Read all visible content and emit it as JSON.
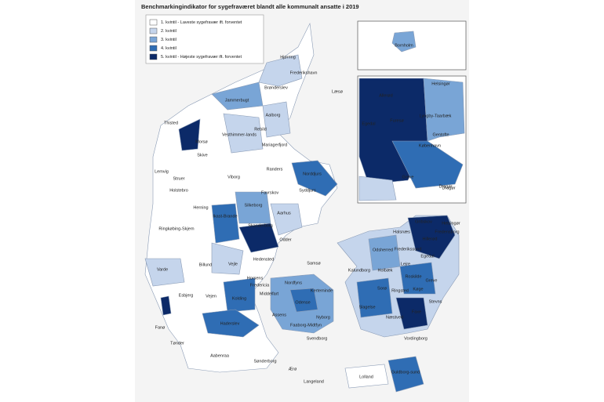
{
  "title": "Benchmarkingindikator for sygefraværet blandt alle kommunalt ansatte i 2019",
  "legend": [
    {
      "label": "1. kvintil - Laveste sygefravær ift. forventet",
      "color": "#ffffff"
    },
    {
      "label": "2. kvintil",
      "color": "#c5d5ec"
    },
    {
      "label": "3. kvintil",
      "color": "#79a5d6"
    },
    {
      "label": "4. kvintil",
      "color": "#2f6db4"
    },
    {
      "label": "5. kvintil - Højeste sygefravær ift. forventet",
      "color": "#0c2a68"
    }
  ],
  "municipalities": [
    "Hjørring",
    "Frederikshavn",
    "Læsø",
    "Brønderslev",
    "Jammerbugt",
    "Aalborg",
    "Thisted",
    "Vesthimmer-lands",
    "Rebild",
    "Mariagerfjord",
    "Morsø",
    "Skive",
    "Viborg",
    "Randers",
    "Norddjurs",
    "Lemvig",
    "Struer",
    "Holstebro",
    "Favrskov",
    "Syddjurs",
    "Herning",
    "Silkeborg",
    "Ikast-Brande",
    "Skanderborg",
    "Aarhus",
    "Odder",
    "Ringkøbing-Skjern",
    "Samsø",
    "Hedensted",
    "Billund",
    "Vejle",
    "Varde",
    "Horsens",
    "Esbjerg",
    "Fanø",
    "Vejen",
    "Kolding",
    "Fredericia",
    "Middelfart",
    "Nordfyns",
    "Kerteminde",
    "Odense",
    "Assens",
    "Faaborg-Midtfyn",
    "Nyborg",
    "Haderslev",
    "Svendborg",
    "Tønder",
    "Aabenraa",
    "Sønderborg",
    "Ærø",
    "Langeland",
    "Lolland",
    "Guldborg-sund",
    "Vordingborg",
    "Næstved",
    "Faxe",
    "Køge",
    "Stevns",
    "Sorø",
    "Ringsted",
    "Slagelse",
    "Holbæk",
    "Kalundborg",
    "Odsherred",
    "Roskilde",
    "Lejre",
    "Greve",
    "Halsnæs",
    "Gribskov",
    "Helsingør",
    "Fredensborg",
    "Hillerød",
    "Frederikssund",
    "Egedal",
    "Dragør"
  ],
  "inset_labels": [
    "Bornholm",
    "Helsingør",
    "Allerød",
    "Furesø",
    "Lyngby-Taarbæk",
    "Gentofte",
    "København",
    "Egedal",
    "Greve",
    "Dragør"
  ]
}
